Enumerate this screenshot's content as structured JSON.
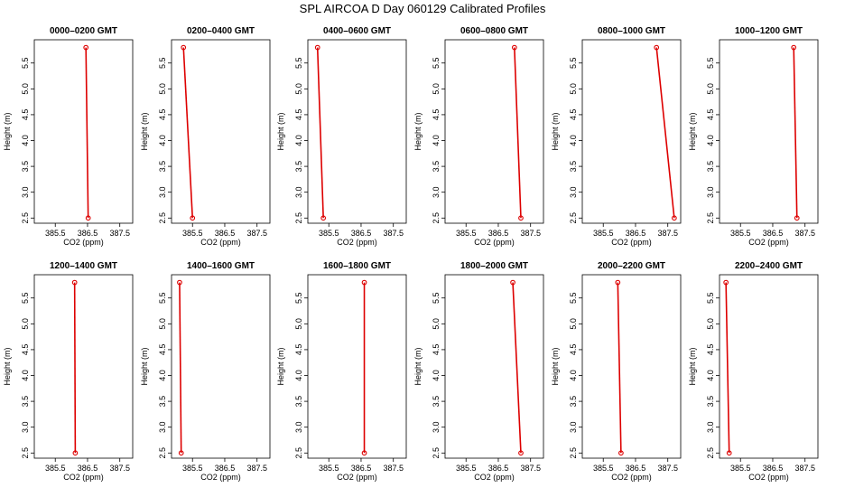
{
  "figure": {
    "title": "SPL AIRCOA D  Day 060129  Calibrated Profiles"
  },
  "chart_data": {
    "type": "line",
    "grid": false,
    "series_color": "#dd0000",
    "xlabel": "CO2 (ppm)",
    "ylabel": "Height (m)",
    "xlim": [
      384.85,
      387.9
    ],
    "ylim": [
      2.4,
      5.95
    ],
    "xticks": [
      "385.5",
      "386.5",
      "387.5"
    ],
    "yticks": [
      "2.5",
      "3.0",
      "3.5",
      "4.0",
      "4.5",
      "5.0",
      "5.5"
    ],
    "panels": [
      {
        "title": "0000–0200 GMT",
        "points": [
          [
            386.45,
            5.8
          ],
          [
            386.52,
            2.5
          ]
        ]
      },
      {
        "title": "0200–0400 GMT",
        "points": [
          [
            385.22,
            5.8
          ],
          [
            385.5,
            2.5
          ]
        ]
      },
      {
        "title": "0400–0600 GMT",
        "points": [
          [
            385.15,
            5.8
          ],
          [
            385.33,
            2.5
          ]
        ]
      },
      {
        "title": "0600–0800 GMT",
        "points": [
          [
            387.0,
            5.8
          ],
          [
            387.2,
            2.5
          ]
        ]
      },
      {
        "title": "0800–1000 GMT",
        "points": [
          [
            387.15,
            5.8
          ],
          [
            387.7,
            2.5
          ]
        ]
      },
      {
        "title": "1000–1200 GMT",
        "points": [
          [
            387.15,
            5.8
          ],
          [
            387.25,
            2.5
          ]
        ]
      },
      {
        "title": "1200–1400 GMT",
        "points": [
          [
            386.1,
            5.8
          ],
          [
            386.12,
            2.5
          ]
        ]
      },
      {
        "title": "1400–1600 GMT",
        "points": [
          [
            385.1,
            5.8
          ],
          [
            385.15,
            2.5
          ]
        ]
      },
      {
        "title": "1600–1800 GMT",
        "points": [
          [
            386.6,
            5.8
          ],
          [
            386.6,
            2.5
          ]
        ]
      },
      {
        "title": "1800–2000 GMT",
        "points": [
          [
            386.95,
            5.8
          ],
          [
            387.2,
            2.5
          ]
        ]
      },
      {
        "title": "2000–2200 GMT",
        "points": [
          [
            385.95,
            5.8
          ],
          [
            386.05,
            2.5
          ]
        ]
      },
      {
        "title": "2200–2400 GMT",
        "points": [
          [
            385.05,
            5.8
          ],
          [
            385.15,
            2.5
          ]
        ]
      }
    ]
  }
}
